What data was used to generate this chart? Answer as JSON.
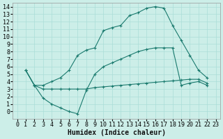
{
  "xlabel": "Humidex (Indice chaleur)",
  "bg_color": "#cceee8",
  "grid_color": "#aaddd8",
  "line_color": "#1a7a6e",
  "xlim": [
    -0.5,
    23.5
  ],
  "ylim": [
    -1.0,
    14.5
  ],
  "xticks": [
    0,
    1,
    2,
    3,
    4,
    5,
    6,
    7,
    8,
    9,
    10,
    11,
    12,
    13,
    14,
    15,
    16,
    17,
    18,
    19,
    20,
    21,
    22,
    23
  ],
  "yticks": [
    0,
    1,
    2,
    3,
    4,
    5,
    6,
    7,
    8,
    9,
    10,
    11,
    12,
    13,
    14
  ],
  "line1_x": [
    1,
    2,
    3,
    4,
    5,
    6,
    7,
    8,
    9,
    10,
    11,
    12,
    13,
    14,
    15,
    16,
    17,
    18,
    19,
    20,
    21,
    22
  ],
  "line1_y": [
    5.5,
    3.5,
    3.5,
    4.0,
    4.5,
    5.5,
    7.5,
    8.2,
    8.5,
    10.8,
    11.2,
    11.5,
    12.8,
    13.2,
    13.8,
    14.0,
    13.8,
    11.5,
    9.5,
    7.5,
    5.5,
    4.5
  ],
  "line2_x": [
    1,
    2,
    3,
    4,
    5,
    6,
    7,
    8,
    9,
    10,
    11,
    12,
    13,
    14,
    15,
    16,
    17,
    18,
    19,
    20,
    21,
    22
  ],
  "line2_y": [
    5.5,
    3.5,
    1.8,
    1.0,
    0.5,
    0.0,
    -0.3,
    2.8,
    5.0,
    6.0,
    6.5,
    7.0,
    7.5,
    8.0,
    8.3,
    8.5,
    8.5,
    8.5,
    3.5,
    3.8,
    4.0,
    3.5
  ],
  "line3_x": [
    1,
    2,
    3,
    4,
    5,
    6,
    7,
    8,
    9,
    10,
    11,
    12,
    13,
    14,
    15,
    16,
    17,
    18,
    19,
    20,
    21,
    22
  ],
  "line3_y": [
    5.5,
    3.5,
    3.0,
    3.0,
    3.0,
    3.0,
    3.0,
    3.0,
    3.2,
    3.3,
    3.4,
    3.5,
    3.6,
    3.7,
    3.8,
    3.9,
    4.0,
    4.1,
    4.2,
    4.3,
    4.3,
    3.8
  ],
  "tick_fontsize": 6,
  "xlabel_fontsize": 7
}
